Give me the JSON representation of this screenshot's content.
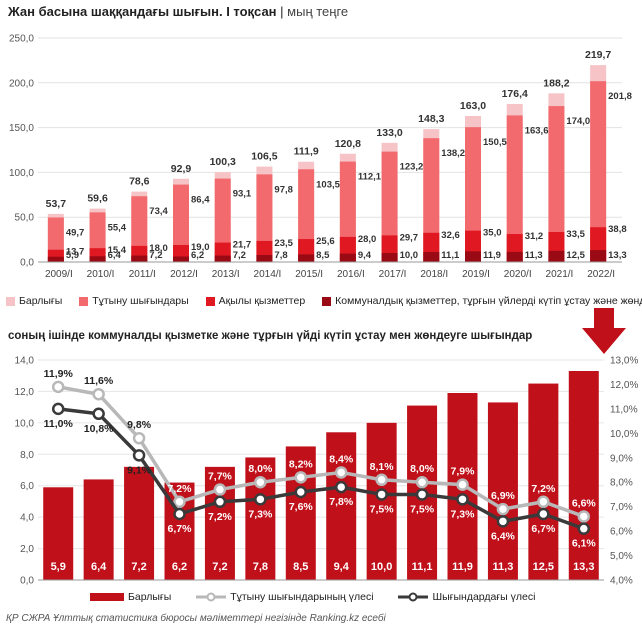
{
  "top": {
    "title": "Жан басына шаққандағы шығын. I тоқсан",
    "unit": "мың теңге",
    "legend": [
      "Барлығы",
      "Тұтыну шығындары",
      "Ақылы қызметтер",
      "Коммуналдық қызметтер, тұрғын үйлерді күтіп ұстау және жөндеу"
    ],
    "colors": {
      "total": "#f6c4c6",
      "consumption": "#f26a6e",
      "paid": "#e01822",
      "communal": "#9a0a14"
    }
  },
  "chart_data": [
    {
      "type": "bar",
      "title": "Жан басына шаққандағы шығын. I тоқсан",
      "ylabel": "мың теңге",
      "ylim": [
        0,
        250
      ],
      "yticks": [
        "0,0",
        "50,0",
        "100,0",
        "150,0",
        "200,0",
        "250,0"
      ],
      "categories": [
        "2009/I",
        "2010/I",
        "2011/I",
        "2012/I",
        "2013/I",
        "2014/I",
        "2015/I",
        "2016/I",
        "2017/I",
        "2018/I",
        "2019/I",
        "2020/I",
        "2021/I",
        "2022/I"
      ],
      "series": [
        {
          "name": "Барлығы",
          "values": [
            53.7,
            59.6,
            78.6,
            92.9,
            100.3,
            106.5,
            111.9,
            120.8,
            133.0,
            148.3,
            163.0,
            176.4,
            188.2,
            219.7
          ],
          "labels": [
            "53,7",
            "59,6",
            "78,6",
            "92,9",
            "100,3",
            "106,5",
            "111,9",
            "120,8",
            "133,0",
            "148,3",
            "163,0",
            "176,4",
            "188,2",
            "219,7"
          ]
        },
        {
          "name": "Тұтыну шығындары",
          "values": [
            49.7,
            55.4,
            73.4,
            86.4,
            93.1,
            97.8,
            103.5,
            112.1,
            123.2,
            138.2,
            150.5,
            163.6,
            174.0,
            201.8
          ],
          "labels": [
            "49,7",
            "55,4",
            "73,4",
            "86,4",
            "93,1",
            "97,8",
            "103,5",
            "112,1",
            "123,2",
            "138,2",
            "150,5",
            "163,6",
            "174,0",
            "201,8"
          ]
        },
        {
          "name": "Ақылы қызметтер",
          "values": [
            13.7,
            15.4,
            18.0,
            19.0,
            21.7,
            23.5,
            25.6,
            28.0,
            29.7,
            32.6,
            35.0,
            31.2,
            33.5,
            38.8
          ],
          "labels": [
            "13,7",
            "15,4",
            "18,0",
            "19,0",
            "21,7",
            "23,5",
            "25,6",
            "28,0",
            "29,7",
            "32,6",
            "35,0",
            "31,2",
            "33,5",
            "38,8"
          ]
        },
        {
          "name": "Коммуналдық қызметтер, тұрғын үйлерді күтіп ұстау және жөндеу",
          "values": [
            5.9,
            6.4,
            7.2,
            6.2,
            7.2,
            7.8,
            8.5,
            9.4,
            10.0,
            11.1,
            11.9,
            11.3,
            12.5,
            13.3
          ],
          "labels": [
            "5,9",
            "6,4",
            "7,2",
            "6,2",
            "7,2",
            "7,8",
            "8,5",
            "9,4",
            "10,0",
            "11,1",
            "11,9",
            "11,3",
            "12,5",
            "13,3"
          ]
        }
      ]
    },
    {
      "type": "bar",
      "title": "соның ішінде коммуналды қызметке және тұрғын үйді күтіп ұстау мен жөндеуге шығындар",
      "ylim": [
        0,
        14
      ],
      "yticks": [
        "0,0",
        "2,0",
        "4,0",
        "6,0",
        "8,0",
        "10,0",
        "12,0",
        "14,0"
      ],
      "y2lim": [
        4,
        13
      ],
      "y2ticks": [
        "4,0%",
        "5,0%",
        "6,0%",
        "7,0%",
        "8,0%",
        "9,0%",
        "10,0%",
        "11,0%",
        "12,0%",
        "13,0%"
      ],
      "categories": [
        "2009/I",
        "2010/I",
        "2011/I",
        "2012/I",
        "2013/I",
        "2014/I",
        "2015/I",
        "2016/I",
        "2017/I",
        "2018/I",
        "2019/I",
        "2020/I",
        "2021/I",
        "2022/I"
      ],
      "series": [
        {
          "name": "Барлығы",
          "type": "bar",
          "values": [
            5.9,
            6.4,
            7.2,
            6.2,
            7.2,
            7.8,
            8.5,
            9.4,
            10.0,
            11.1,
            11.9,
            11.3,
            12.5,
            13.3
          ],
          "labels": [
            "5,9",
            "6,4",
            "7,2",
            "6,2",
            "7,2",
            "7,8",
            "8,5",
            "9,4",
            "10,0",
            "11,1",
            "11,9",
            "11,3",
            "12,5",
            "13,3"
          ]
        },
        {
          "name": "Тұтыну шығындарының үлесі",
          "type": "line",
          "axis": "right",
          "values": [
            11.9,
            11.6,
            9.8,
            7.2,
            7.7,
            8.0,
            8.2,
            8.4,
            8.1,
            8.0,
            7.9,
            6.9,
            7.2,
            6.6
          ],
          "labels": [
            "11,9%",
            "11,6%",
            "9,8%",
            "7,2%",
            "7,7%",
            "8,0%",
            "8,2%",
            "8,4%",
            "8,1%",
            "8,0%",
            "7,9%",
            "6,9%",
            "7,2%",
            "6,6%"
          ]
        },
        {
          "name": "Шығындардағы үлесі",
          "type": "line",
          "axis": "right",
          "values": [
            11.0,
            10.8,
            9.1,
            6.7,
            7.2,
            7.3,
            7.6,
            7.8,
            7.5,
            7.5,
            7.3,
            6.4,
            6.7,
            6.1
          ],
          "labels": [
            "11,0%",
            "10,8%",
            "9,1%",
            "6,7%",
            "7,2%",
            "7,3%",
            "7,6%",
            "7,8%",
            "7,5%",
            "7,5%",
            "7,3%",
            "6,4%",
            "6,7%",
            "6,1%"
          ]
        }
      ],
      "colors": {
        "bar": "#c0101a",
        "line1": "#b8b8b8",
        "line2": "#3a3a3a"
      }
    }
  ],
  "bottom": {
    "subtitle": "соның ішінде коммуналды қызметке және тұрғын үйді күтіп ұстау мен жөндеуге шығындар",
    "legend": [
      "Барлығы",
      "Тұтыну шығындарының үлесі",
      "Шығындардағы үлесі"
    ]
  },
  "source": "ҚР СЖРА Ұлттық статистика бюросы мәліметтері негізінде Ranking.kz есебі"
}
